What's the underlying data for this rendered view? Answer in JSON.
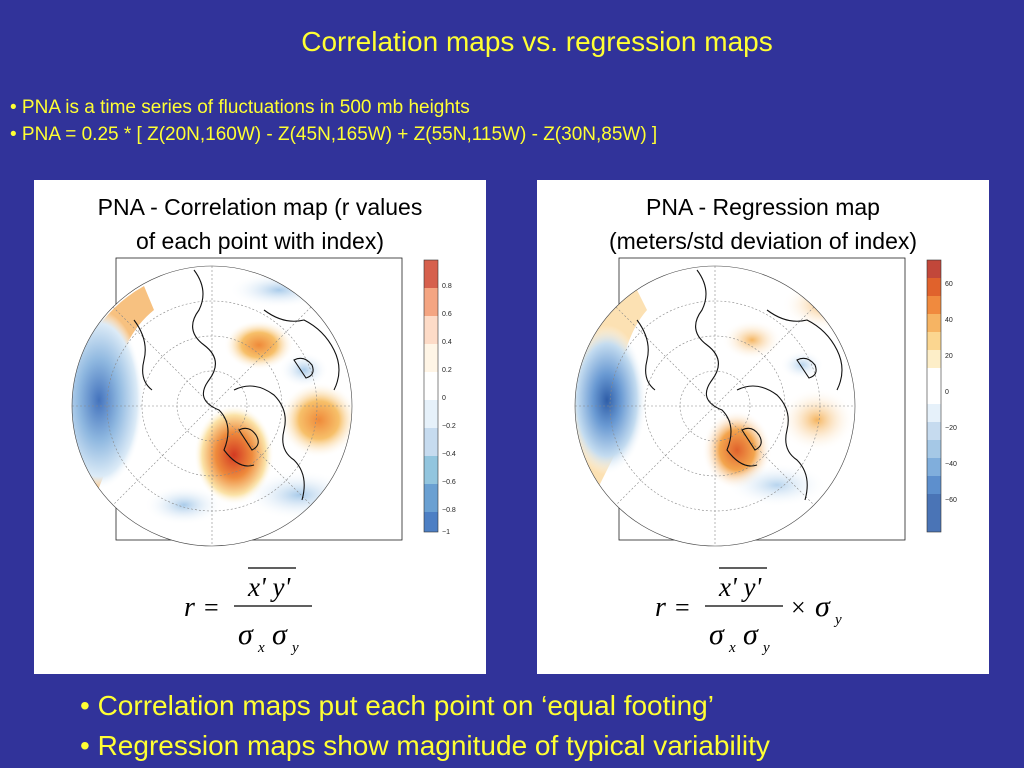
{
  "title": "Correlation maps vs. regression maps",
  "top_bullets": [
    "• PNA is a time series of fluctuations in 500 mb heights",
    "• PNA = 0.25 * [ Z(20N,160W) - Z(45N,165W) + Z(55N,115W) - Z(30N,85W) ]"
  ],
  "left_panel": {
    "title_line1": "PNA - Correlation map (r values",
    "title_line2": "of each point with index)",
    "colorbar_ticks": [
      "0.8",
      "0.6",
      "0.4",
      "0.2",
      "0",
      "−0.2",
      "−0.4",
      "−0.6",
      "−0.8",
      "−1"
    ]
  },
  "right_panel": {
    "title_line1": "PNA - Regression map",
    "title_line2": "(meters/std deviation of index)",
    "colorbar_ticks": [
      "60",
      "40",
      "20",
      "0",
      "−20",
      "−40",
      "−60"
    ]
  },
  "bottom_bullets": [
    "• Correlation maps put each point on ‘equal footing’",
    "• Regression maps show magnitude of typical variability"
  ],
  "colors": {
    "background": "#31339a",
    "text_yellow": "#ffff33",
    "positive": "#e0502a",
    "negative": "#4d7fc4"
  }
}
